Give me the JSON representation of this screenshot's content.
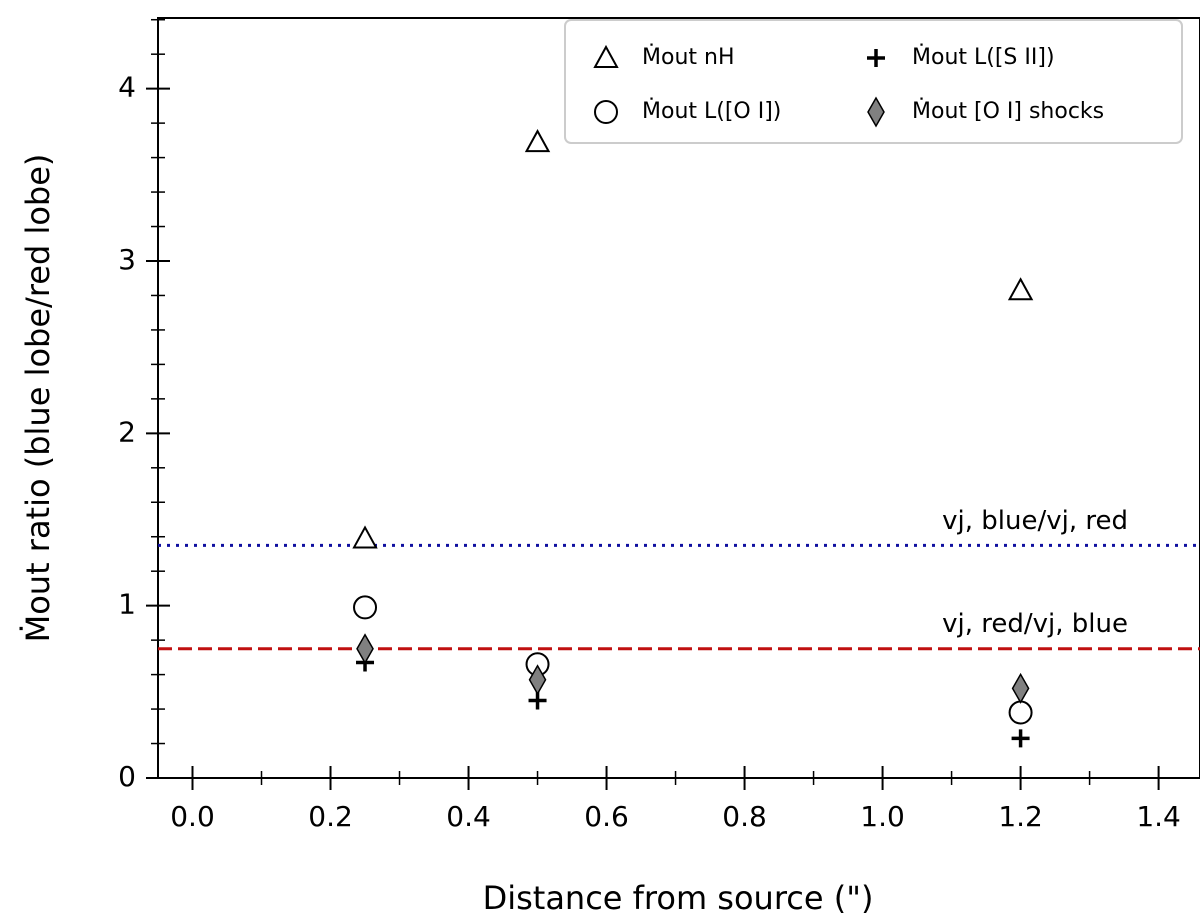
{
  "chart_data": {
    "type": "scatter",
    "xlabel": "Distance from source (\")",
    "ylabel": "Ṁout ratio (blue lobe/red lobe)",
    "xlim": [
      -0.05,
      1.46
    ],
    "ylim": [
      0,
      4.41
    ],
    "xticks": [
      {
        "value": 0.0,
        "label": "0.0"
      },
      0.2,
      0.4,
      0.6,
      0.8,
      {
        "value": 1.0,
        "label": "1.0"
      },
      1.2,
      1.4
    ],
    "xminorticks": [
      0.1,
      0.3,
      0.5,
      0.7,
      0.9,
      1.1,
      1.3
    ],
    "yticks": [
      0,
      1,
      2,
      3,
      4
    ],
    "yminorticks": [
      0.2,
      0.4,
      0.6,
      0.8,
      1.2,
      1.4,
      1.6,
      1.8,
      2.2,
      2.4,
      2.6,
      2.8,
      3.2,
      3.4,
      3.6,
      3.8,
      4.2,
      4.4
    ],
    "x": [
      0.25,
      0.5,
      1.2
    ],
    "series": [
      {
        "name": "Ṁout nH",
        "marker": "triangle",
        "color": "#ffffff",
        "values": [
          1.39,
          3.69,
          2.83
        ]
      },
      {
        "name": "Ṁout L([O I])",
        "marker": "circle",
        "color": "#ffffff",
        "values": [
          0.99,
          0.66,
          0.38
        ]
      },
      {
        "name": "Ṁout L([S II])",
        "marker": "plus",
        "color": "#000000",
        "values": [
          0.67,
          0.45,
          0.23
        ]
      },
      {
        "name": "Ṁout [O I] shocks",
        "marker": "diamond",
        "color": "#808080",
        "values": [
          0.75,
          0.57,
          0.52
        ]
      }
    ],
    "reference_lines": [
      {
        "value": 1.35,
        "color": "#1010a0",
        "style": "dotted",
        "label": "vj, blue/vj, red"
      },
      {
        "value": 0.75,
        "color": "#c01010",
        "style": "dashed",
        "label": "vj, red/vj, blue"
      }
    ],
    "legend": "upper right"
  }
}
